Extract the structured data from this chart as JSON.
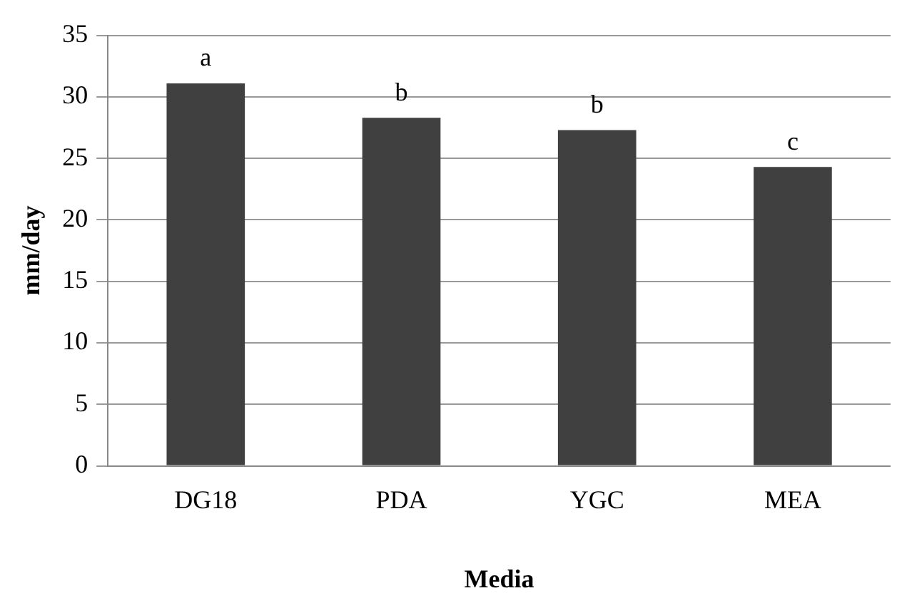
{
  "chart_data": {
    "type": "bar",
    "xlabel": "Media",
    "ylabel": "mm/day",
    "categories": [
      "DG18",
      "PDA",
      "YGC",
      "MEA"
    ],
    "values": [
      31.1,
      28.3,
      27.3,
      24.3
    ],
    "color": "#404040",
    "ylim": [
      0,
      35
    ],
    "yticks": [
      0,
      5,
      10,
      15,
      20,
      25,
      30,
      35
    ],
    "grid": "y",
    "legend": false,
    "annotations": [
      {
        "text": "a",
        "x": "DG18",
        "y": 31.1
      },
      {
        "text": "b",
        "x": "PDA",
        "y": 28.3
      },
      {
        "text": "b",
        "x": "YGC",
        "y": 27.3
      },
      {
        "text": "c",
        "x": "MEA",
        "y": 24.3
      }
    ]
  }
}
